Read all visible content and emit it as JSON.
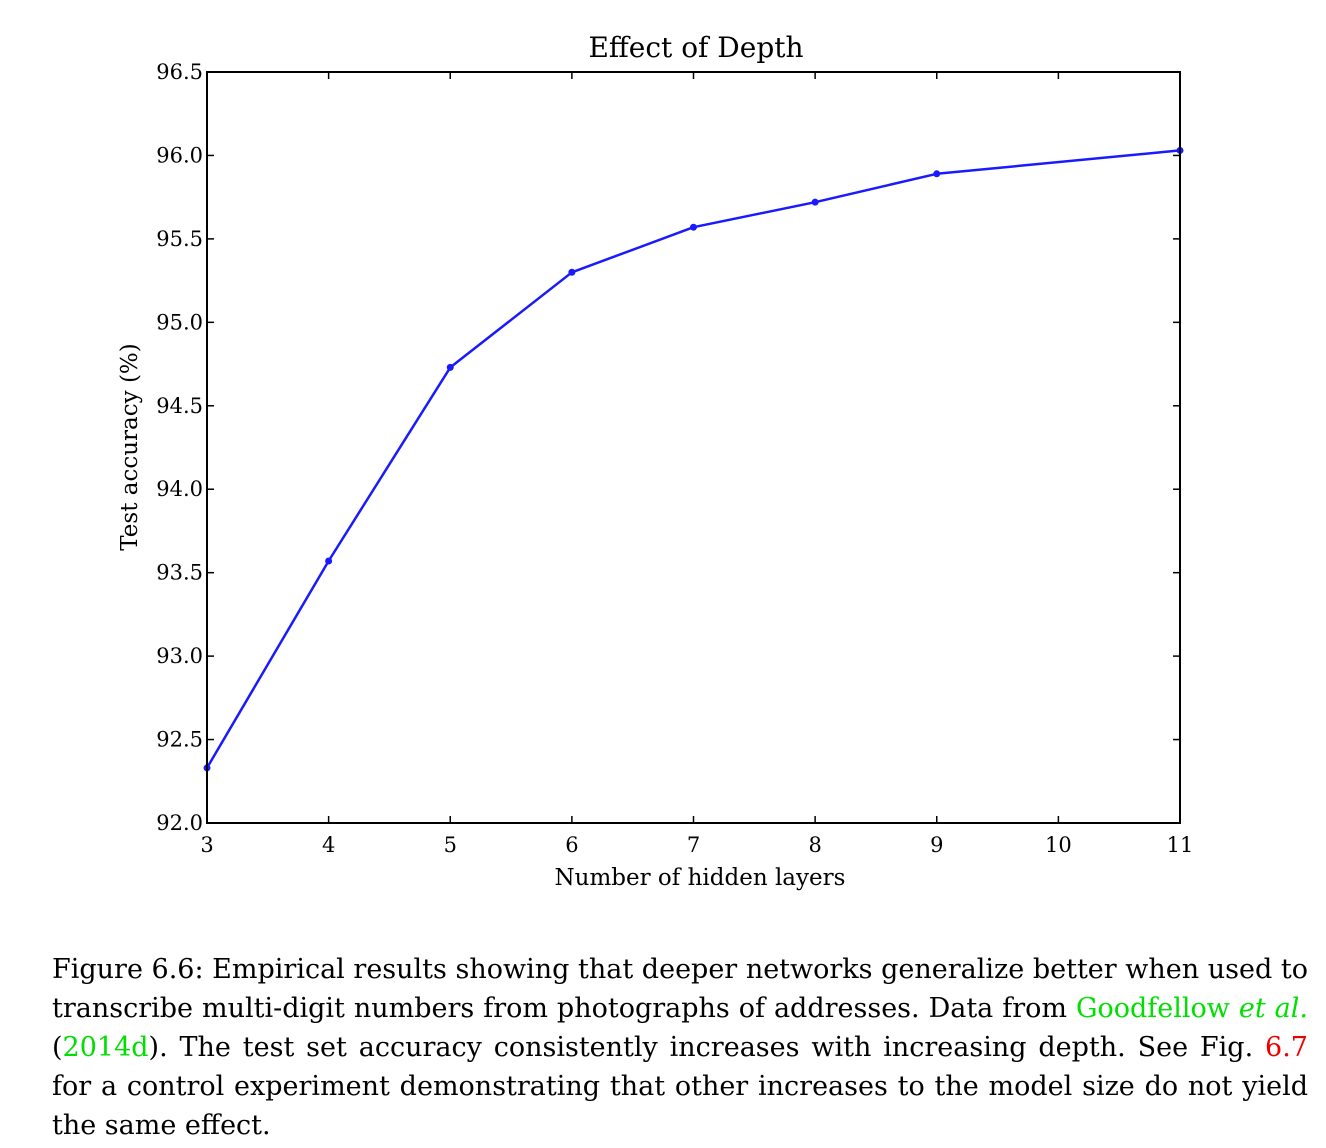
{
  "colors": {
    "series": "#1a1aff",
    "cite": "#00e000",
    "ref": "#ee0000"
  },
  "chart_data": {
    "type": "line",
    "title": "Effect of Depth",
    "xlabel": "Number of hidden layers",
    "ylabel": "Test accuracy (%)",
    "xlim": [
      3,
      11
    ],
    "ylim": [
      92.0,
      96.5
    ],
    "xticks": [
      "3",
      "4",
      "5",
      "6",
      "7",
      "8",
      "9",
      "10",
      "11"
    ],
    "yticks": [
      "92.0",
      "92.5",
      "93.0",
      "93.5",
      "94.0",
      "94.5",
      "95.0",
      "95.5",
      "96.0",
      "96.5"
    ],
    "grid": false,
    "series": [
      {
        "x": [
          3,
          4,
          5,
          6,
          7,
          8,
          9,
          11
        ],
        "values": [
          92.33,
          93.57,
          94.73,
          95.3,
          95.57,
          95.72,
          95.89,
          96.03
        ]
      }
    ]
  },
  "caption": {
    "part1": "Figure 6.6: Empirical results showing that deeper networks generalize better when used to transcribe multi-digit numbers from photographs of addresses. Data from ",
    "cite_author": "Goodfellow",
    "cite_etal": "et al.",
    "paren_open": " (",
    "cite_year": "2014d",
    "part2": "). The test set accuracy consistently increases with increasing depth. See Fig. ",
    "fig_ref": "6.7",
    "part3": " for a control experiment demonstrating that other increases to the model size do not yield the same effect."
  }
}
